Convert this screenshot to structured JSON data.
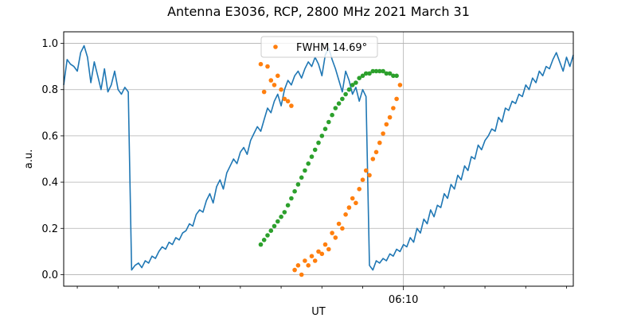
{
  "chart_data": {
    "type": "line",
    "title": "Antenna E3036, RCP, 2800 MHz 2021 March 31",
    "xlabel": "UT",
    "ylabel": "a.u.",
    "x_unit": "minutes",
    "xlim": [
      0,
      150
    ],
    "ylim": [
      -0.05,
      1.05
    ],
    "yticks": [
      0.0,
      0.2,
      0.4,
      0.6,
      0.8,
      1.0
    ],
    "ytick_labels": [
      "0.0",
      "0.2",
      "0.4",
      "0.6",
      "0.8",
      "1.0"
    ],
    "xtick_labels": [
      {
        "x": 100,
        "label": "06:10"
      }
    ],
    "grid": true,
    "legend": {
      "position": "top-center",
      "entries": [
        "FWHM 14.69$^\\circ$"
      ],
      "entry_text": "FWHM 14.69°"
    },
    "colors": {
      "blue": "#1f77b4",
      "orange": "#ff7f0e",
      "green": "#2ca02c",
      "grid": "#b0b0b0"
    },
    "series": [
      {
        "style": "line",
        "color": "#1f77b4",
        "x": [
          0,
          1,
          2,
          3,
          4,
          5,
          6,
          7,
          8,
          9,
          10,
          11,
          12,
          13,
          14,
          15,
          16,
          17,
          18,
          19,
          20,
          21,
          22,
          23,
          24,
          25,
          26,
          27,
          28,
          29,
          30,
          31,
          32,
          33,
          34,
          35,
          36,
          37,
          38,
          39,
          40,
          41,
          42,
          43,
          44,
          45,
          46,
          47,
          48,
          49,
          50,
          51,
          52,
          53,
          54,
          55,
          56,
          57,
          58,
          59,
          60,
          61,
          62,
          63,
          64,
          65,
          66,
          67,
          68,
          69,
          70,
          71,
          72,
          73,
          74,
          75,
          76,
          77,
          78,
          79,
          80,
          81,
          82,
          83,
          84,
          85,
          86,
          87,
          88,
          89,
          90,
          91,
          92,
          93,
          94,
          95,
          96,
          97,
          98,
          99,
          100,
          101,
          102,
          103,
          104,
          105,
          106,
          107,
          108,
          109,
          110,
          111,
          112,
          113,
          114,
          115,
          116,
          117,
          118,
          119,
          120,
          121,
          122,
          123,
          124,
          125,
          126,
          127,
          128,
          129,
          130,
          131,
          132,
          133,
          134,
          135,
          136,
          137,
          138,
          139,
          140,
          141,
          142,
          143,
          144,
          145,
          146,
          147,
          148,
          149,
          150
        ],
        "y": [
          0.82,
          0.93,
          0.91,
          0.9,
          0.88,
          0.96,
          0.99,
          0.94,
          0.83,
          0.92,
          0.86,
          0.8,
          0.89,
          0.79,
          0.82,
          0.88,
          0.8,
          0.78,
          0.81,
          0.79,
          0.02,
          0.04,
          0.05,
          0.03,
          0.06,
          0.05,
          0.08,
          0.07,
          0.1,
          0.12,
          0.11,
          0.14,
          0.13,
          0.16,
          0.15,
          0.18,
          0.19,
          0.22,
          0.21,
          0.26,
          0.28,
          0.27,
          0.32,
          0.35,
          0.31,
          0.38,
          0.41,
          0.37,
          0.44,
          0.47,
          0.5,
          0.48,
          0.53,
          0.55,
          0.52,
          0.58,
          0.61,
          0.64,
          0.62,
          0.67,
          0.72,
          0.7,
          0.75,
          0.78,
          0.73,
          0.8,
          0.84,
          0.82,
          0.86,
          0.88,
          0.85,
          0.89,
          0.92,
          0.9,
          0.94,
          0.91,
          0.86,
          0.95,
          0.98,
          0.93,
          0.89,
          0.84,
          0.79,
          0.88,
          0.84,
          0.78,
          0.81,
          0.75,
          0.8,
          0.77,
          0.04,
          0.02,
          0.06,
          0.05,
          0.07,
          0.06,
          0.09,
          0.08,
          0.11,
          0.1,
          0.13,
          0.12,
          0.16,
          0.14,
          0.2,
          0.18,
          0.24,
          0.22,
          0.28,
          0.25,
          0.3,
          0.29,
          0.35,
          0.33,
          0.39,
          0.37,
          0.43,
          0.41,
          0.47,
          0.45,
          0.51,
          0.5,
          0.56,
          0.54,
          0.58,
          0.6,
          0.63,
          0.62,
          0.68,
          0.66,
          0.72,
          0.71,
          0.75,
          0.74,
          0.78,
          0.77,
          0.82,
          0.8,
          0.85,
          0.83,
          0.88,
          0.86,
          0.9,
          0.89,
          0.93,
          0.96,
          0.92,
          0.88,
          0.94,
          0.9,
          0.95
        ]
      },
      {
        "style": "markers",
        "color": "#ff7f0e",
        "name": "FWHM 14.69°",
        "x": [
          58,
          59,
          60,
          61,
          62,
          63,
          64,
          65,
          66,
          67,
          68,
          69,
          70,
          71,
          72,
          73,
          74,
          75,
          76,
          77,
          78,
          79,
          80,
          81,
          82,
          83,
          84,
          85,
          86,
          87,
          88,
          89,
          90,
          91,
          92,
          93,
          94,
          95,
          96,
          97,
          98,
          99
        ],
        "y": [
          0.91,
          0.79,
          0.9,
          0.84,
          0.82,
          0.86,
          0.8,
          0.76,
          0.75,
          0.73,
          0.02,
          0.04,
          0.0,
          0.06,
          0.04,
          0.08,
          0.06,
          0.1,
          0.09,
          0.13,
          0.11,
          0.18,
          0.16,
          0.22,
          0.2,
          0.26,
          0.29,
          0.33,
          0.31,
          0.37,
          0.41,
          0.45,
          0.43,
          0.5,
          0.53,
          0.57,
          0.61,
          0.65,
          0.68,
          0.72,
          0.76,
          0.82
        ]
      },
      {
        "style": "markers",
        "color": "#2ca02c",
        "x": [
          58,
          59,
          60,
          61,
          62,
          63,
          64,
          65,
          66,
          67,
          68,
          69,
          70,
          71,
          72,
          73,
          74,
          75,
          76,
          77,
          78,
          79,
          80,
          81,
          82,
          83,
          84,
          85,
          86,
          87,
          88,
          89,
          90,
          91,
          92,
          93,
          94,
          95,
          96,
          97,
          98
        ],
        "y": [
          0.13,
          0.15,
          0.17,
          0.19,
          0.21,
          0.23,
          0.25,
          0.27,
          0.3,
          0.33,
          0.36,
          0.39,
          0.42,
          0.45,
          0.48,
          0.51,
          0.54,
          0.57,
          0.6,
          0.63,
          0.66,
          0.69,
          0.72,
          0.74,
          0.76,
          0.78,
          0.8,
          0.82,
          0.83,
          0.85,
          0.86,
          0.87,
          0.87,
          0.88,
          0.88,
          0.88,
          0.88,
          0.87,
          0.87,
          0.86,
          0.86
        ]
      }
    ]
  }
}
